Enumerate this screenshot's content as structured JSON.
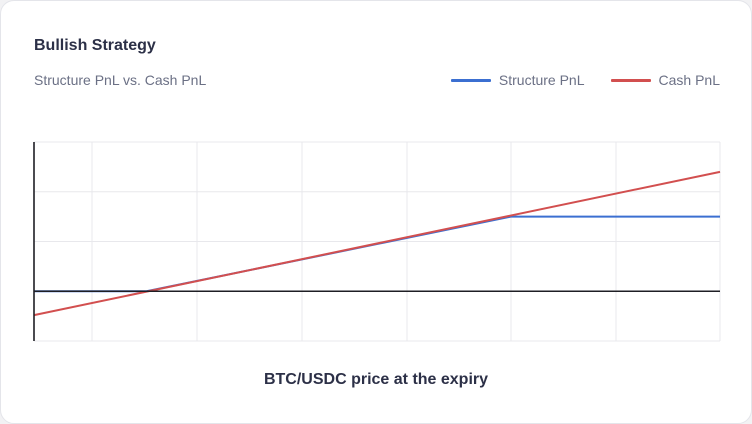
{
  "card": {
    "title": "Bullish Strategy",
    "subtitle": "Structure PnL vs. Cash PnL"
  },
  "legend": {
    "items": [
      {
        "label": "Structure PnL",
        "color": "#3b6fd1"
      },
      {
        "label": "Cash PnL",
        "color": "#d24f4f"
      }
    ]
  },
  "chart_data": {
    "type": "line",
    "title": "Bullish Strategy",
    "subtitle": "Structure PnL vs. Cash PnL",
    "xlabel": "BTC/USDC price at the expiry",
    "ylabel": "",
    "grid": true,
    "legend_position": "top-right",
    "xlim": [
      0,
      100
    ],
    "ylim": [
      -1,
      3
    ],
    "zero_line": 0,
    "series": [
      {
        "name": "Structure PnL",
        "color": "#3b6fd1",
        "x": [
          0,
          16.4,
          69.5,
          100
        ],
        "y": [
          0,
          0,
          1.5,
          1.5
        ]
      },
      {
        "name": "Cash PnL",
        "color": "#d24f4f",
        "x": [
          0,
          100
        ],
        "y": [
          -0.48,
          2.4
        ]
      }
    ]
  }
}
